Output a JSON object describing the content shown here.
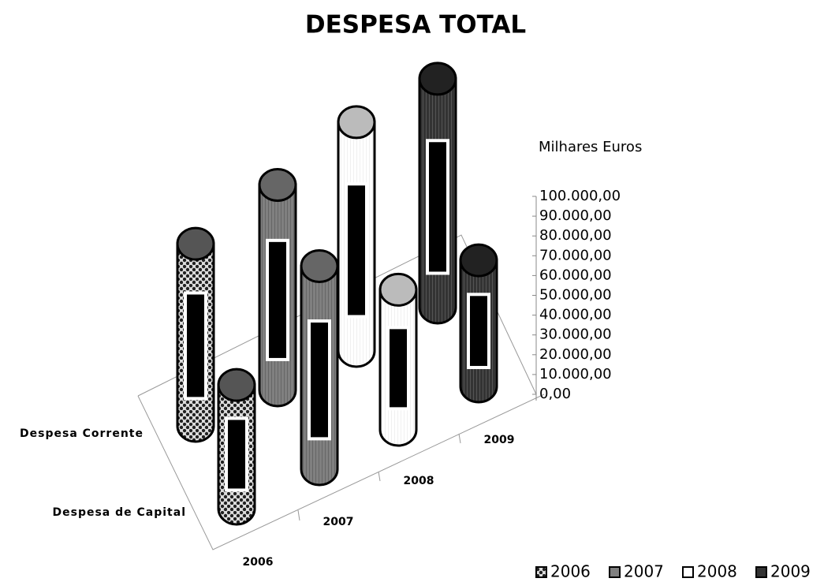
{
  "chart_data": {
    "type": "cylinder3d",
    "title": "DESPESA TOTAL",
    "y_label": "Milhares Euros",
    "categories": [
      "Despesa Corrente",
      "Despesa de Capital"
    ],
    "series": [
      {
        "name": "2006",
        "color": "#555555",
        "values": [
          78000,
          53000
        ]
      },
      {
        "name": "2007",
        "color": "#808080",
        "values": [
          88000,
          87000
        ]
      },
      {
        "name": "2008",
        "color": "#ffffff",
        "values": [
          98000,
          60000
        ]
      },
      {
        "name": "2009",
        "color": "#333333",
        "values": [
          98000,
          54000
        ]
      }
    ],
    "ylim": [
      0,
      100000
    ],
    "yticks": [
      {
        "value": 0,
        "label": "0,00"
      },
      {
        "value": 10000,
        "label": "10.000,00"
      },
      {
        "value": 20000,
        "label": "20.000,00"
      },
      {
        "value": 30000,
        "label": "30.000,00"
      },
      {
        "value": 40000,
        "label": "40.000,00"
      },
      {
        "value": 50000,
        "label": "50.000,00"
      },
      {
        "value": 60000,
        "label": "60.000,00"
      },
      {
        "value": 70000,
        "label": "70.000,00"
      },
      {
        "value": 80000,
        "label": "80.000,00"
      },
      {
        "value": 90000,
        "label": "90.000,00"
      },
      {
        "value": 100000,
        "label": "100.000,00"
      }
    ],
    "legend": "bottom-right"
  }
}
